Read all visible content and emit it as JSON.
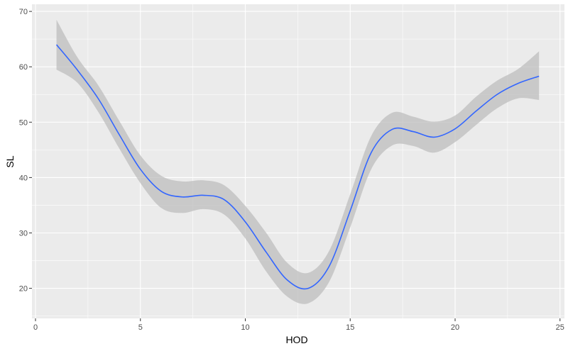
{
  "chart_data": {
    "type": "line",
    "title": "",
    "xlabel": "HOD",
    "ylabel": "SL",
    "xlim": [
      0,
      25
    ],
    "ylim": [
      15,
      70
    ],
    "x_ticks": [
      0,
      5,
      10,
      15,
      20,
      25
    ],
    "y_ticks": [
      20,
      30,
      40,
      50,
      60,
      70
    ],
    "x_tick_labels": [
      "0",
      "5",
      "10",
      "15",
      "20",
      "25"
    ],
    "y_tick_labels": [
      "20",
      "30",
      "40",
      "50",
      "60",
      "70"
    ],
    "grid": true,
    "legend": "none",
    "colors": {
      "line": "#3366ff",
      "ribbon": "#bdbdbd",
      "panel": "#ebebeb"
    },
    "series": [
      {
        "x": [
          1,
          2,
          3,
          4,
          5,
          6,
          7,
          8,
          9,
          10,
          11,
          12,
          13,
          14,
          15,
          16,
          17,
          18,
          19,
          20,
          21,
          22,
          23,
          24
        ],
        "y": [
          64,
          59.4,
          54.2,
          47.7,
          41.5,
          37.5,
          36.5,
          36.8,
          36,
          32,
          26.5,
          21.5,
          20,
          24,
          34,
          44.5,
          48.7,
          48.3,
          47.3,
          48.8,
          52,
          55,
          57,
          58.3
        ],
        "ymin": [
          59.5,
          57.1,
          51.8,
          45.2,
          39,
          34.5,
          33.6,
          34.3,
          33.3,
          29,
          23,
          18.5,
          17.3,
          21.2,
          31,
          41.5,
          45.8,
          45.7,
          44.5,
          46.4,
          49.5,
          52.5,
          54.3,
          54
        ],
        "ymax": [
          68.5,
          61.7,
          56.6,
          50.2,
          44,
          40.3,
          39.3,
          39.5,
          38.6,
          34.9,
          30,
          24.6,
          22.8,
          26.8,
          37,
          47.5,
          51.7,
          51,
          50.1,
          51.2,
          54.6,
          57.5,
          59.6,
          62.8
        ]
      }
    ]
  }
}
